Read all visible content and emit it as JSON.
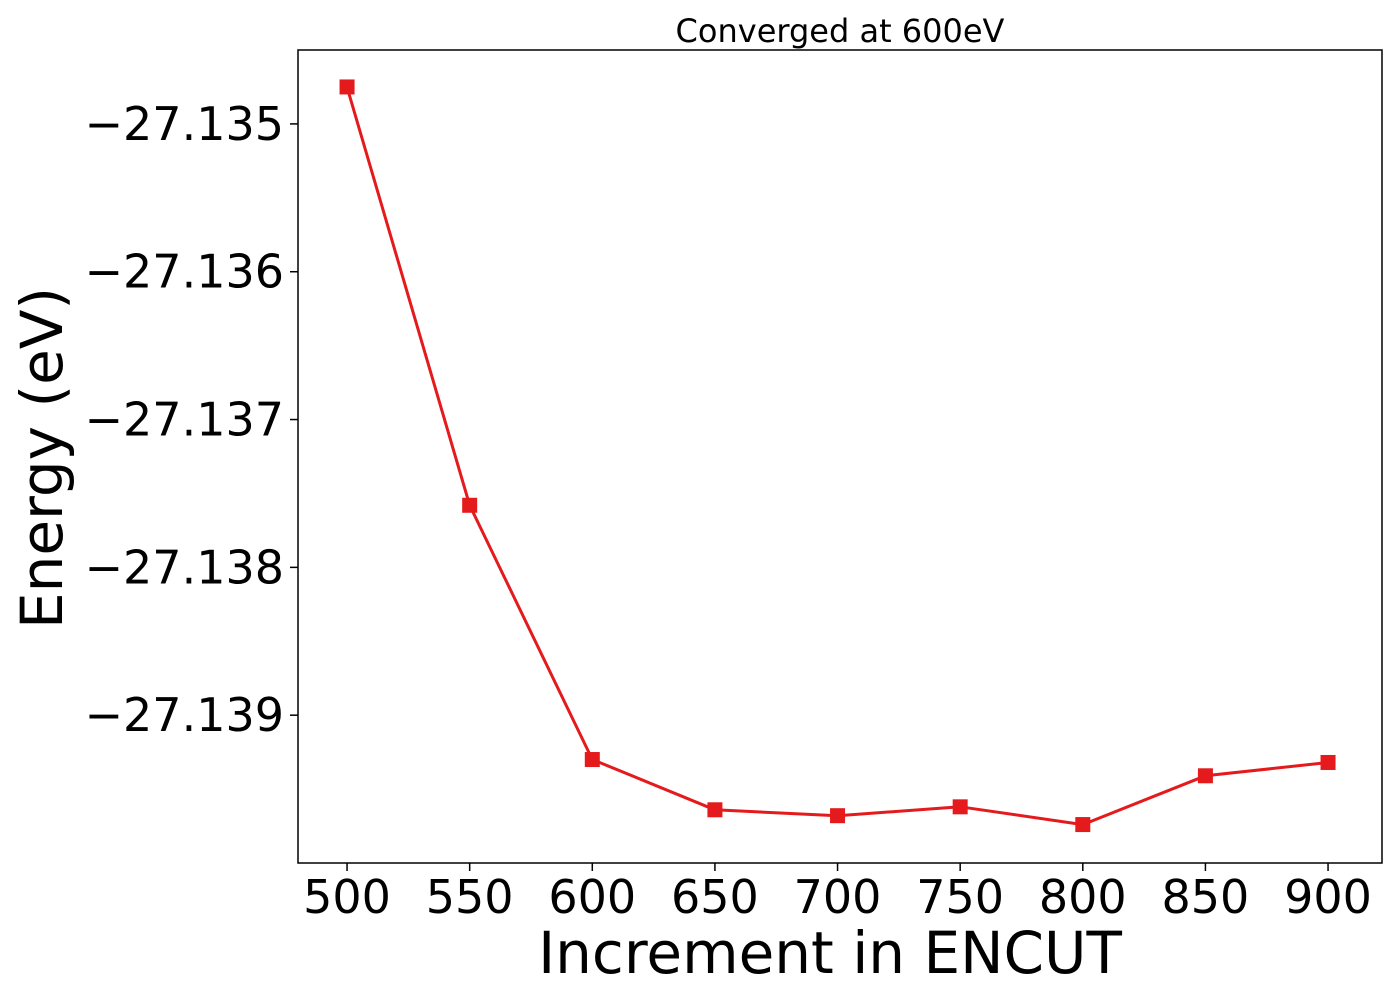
{
  "chart_data": {
    "type": "line",
    "title": "Converged at 600eV",
    "xlabel": "Increment in ENCUT",
    "ylabel": "Energy (eV)",
    "x": [
      500,
      550,
      600,
      650,
      700,
      750,
      800,
      850,
      900
    ],
    "series": [
      {
        "values": [
          -27.13475,
          -27.13758,
          -27.1393,
          -27.13964,
          -27.13968,
          -27.13962,
          -27.13974,
          -27.13941,
          -27.13932
        ],
        "color": "#e41a1c",
        "marker": "square"
      }
    ],
    "xlim": [
      480,
      922
    ],
    "ylim": [
      -27.14,
      -27.1345
    ],
    "xticks": [
      500,
      550,
      600,
      650,
      700,
      750,
      800,
      850,
      900
    ],
    "xtick_labels": [
      "500",
      "550",
      "600",
      "650",
      "700",
      "750",
      "800",
      "850",
      "900"
    ],
    "yticks": [
      -27.135,
      -27.136,
      -27.137,
      -27.138,
      -27.139
    ],
    "ytick_labels": [
      "−27.135",
      "−27.136",
      "−27.137",
      "−27.138",
      "−27.139"
    ],
    "grid": false,
    "legend": "none"
  }
}
